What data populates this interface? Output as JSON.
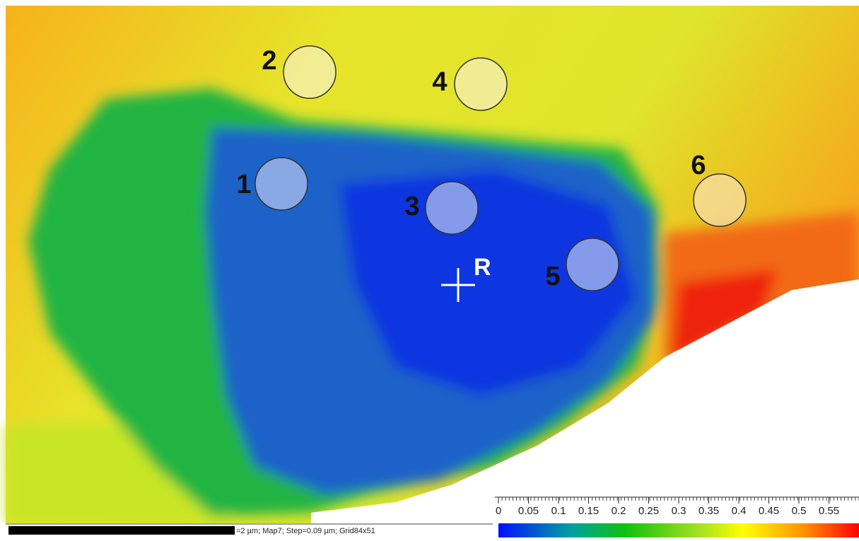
{
  "markers": [
    {
      "label": "1"
    },
    {
      "label": "2"
    },
    {
      "label": "3"
    },
    {
      "label": "4"
    },
    {
      "label": "5"
    },
    {
      "label": "6"
    }
  ],
  "reference": {
    "label": "R"
  },
  "scale_bar": {
    "label": "=2 µm; Map7; Step=0.09 µm; Grid84x51"
  },
  "colorbar": {
    "lim": [
      0,
      0.6
    ],
    "ticks": [
      0,
      0.05,
      0.1,
      0.15,
      0.2,
      0.25,
      0.3,
      0.35,
      0.4,
      0.45,
      0.5,
      0.55
    ]
  }
}
